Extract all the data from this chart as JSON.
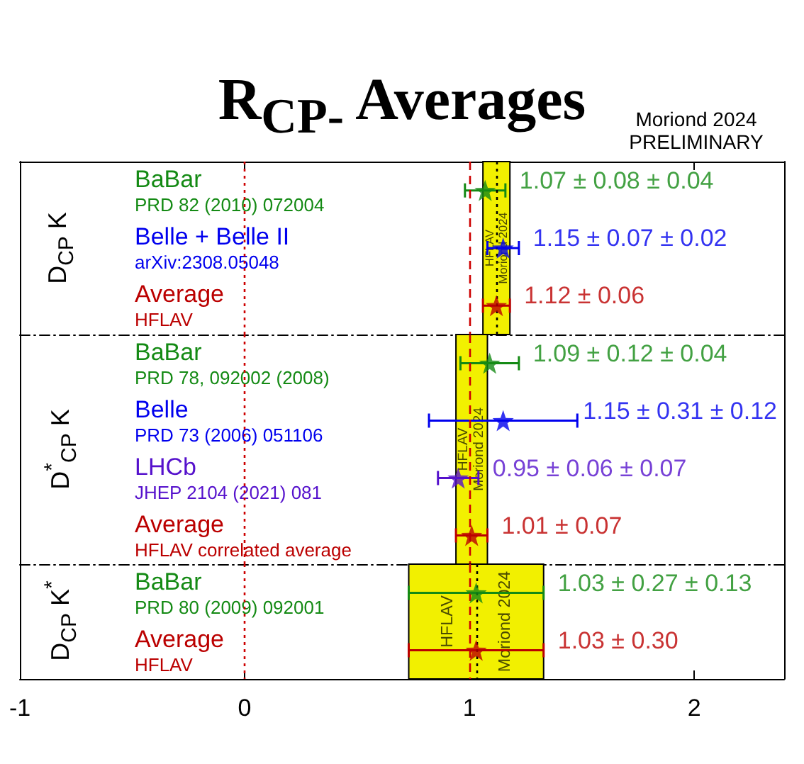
{
  "chart_data": [
    {
      "type": "scatter",
      "orientation": "horizontal",
      "title": "R$_{CP-}$ Averages",
      "annotations": [
        "Moriond 2024",
        "PRELIMINARY"
      ],
      "ylabel": "D$_{CP}$ K",
      "categories": [
        "BaBar\nPRD 82 (2010) 072004",
        "Belle + Belle II\narXiv:2308.05048",
        "Average\nHFLAV"
      ],
      "series": [
        {
          "values": [
            1.07,
            1.15,
            1.12
          ],
          "errors": [
            0.09,
            0.07,
            0.06
          ],
          "colors": [
            "#148a14",
            "#0000ee",
            "#bb0000"
          ],
          "value_labels": [
            "1.07 ± 0.08 ± 0.04",
            "1.15 ± 0.07 ± 0.02",
            "1.12 ± 0.06"
          ]
        }
      ],
      "xlim": [
        -1,
        2.4
      ],
      "xticks": [
        -1,
        0,
        1,
        2
      ],
      "tick_labels": "y",
      "marker": "star",
      "bands": [
        {
          "axis": "x",
          "from": 1.06,
          "to": 1.18,
          "label": "HFLAV\nMoriond 2024",
          "color": "#f2f000"
        }
      ],
      "ref_lines": [
        {
          "axis": "x",
          "value": 0,
          "color": "#cc0000",
          "line_style": "dotted"
        },
        {
          "axis": "x",
          "value": 1,
          "color": "#cc0000",
          "line_style": "dashed"
        },
        {
          "axis": "x",
          "value": 1.12,
          "color": "#000000",
          "line_style": "dotted"
        }
      ]
    },
    {
      "type": "scatter",
      "orientation": "horizontal",
      "ylabel": "D$^{*}$$_{CP}$ K",
      "categories": [
        "BaBar\nPRD 78, 092002 (2008)",
        "Belle\nPRD 73 (2006) 051106",
        "LHCb\nJHEP 2104 (2021) 081",
        "Average\nHFLAV correlated average"
      ],
      "series": [
        {
          "values": [
            1.09,
            1.15,
            0.95,
            1.01
          ],
          "errors": [
            0.13,
            0.33,
            0.09,
            0.07
          ],
          "colors": [
            "#148a14",
            "#0000ee",
            "#5511cc",
            "#bb0000"
          ],
          "value_labels": [
            "1.09 ± 0.12 ± 0.04",
            "1.15 ± 0.31 ± 0.12",
            "0.95 ± 0.06 ± 0.07",
            "1.01 ± 0.07"
          ]
        }
      ],
      "xlim": [
        -1,
        2.4
      ],
      "xticks": [
        -1,
        0,
        1,
        2
      ],
      "tick_labels": "y",
      "marker": "star",
      "bands": [
        {
          "axis": "x",
          "from": 0.94,
          "to": 1.08,
          "label": "HFLAV\nMoriond 2024",
          "color": "#f2f000"
        }
      ],
      "ref_lines": [
        {
          "axis": "x",
          "value": 0,
          "color": "#cc0000",
          "line_style": "dotted"
        },
        {
          "axis": "x",
          "value": 1,
          "color": "#cc0000",
          "line_style": "dashed"
        }
      ]
    },
    {
      "type": "scatter",
      "orientation": "horizontal",
      "ylabel": "D$_{CP}$ K$^{*}$",
      "categories": [
        "BaBar\nPRD 80 (2009) 092001",
        "Average\nHFLAV"
      ],
      "series": [
        {
          "values": [
            1.03,
            1.03
          ],
          "errors": [
            0.3,
            0.3
          ],
          "colors": [
            "#148a14",
            "#bb0000"
          ],
          "value_labels": [
            "1.03 ± 0.27 ± 0.13",
            "1.03 ± 0.30"
          ]
        }
      ],
      "xlim": [
        -1,
        2.4
      ],
      "xticks": [
        -1,
        0,
        1,
        2
      ],
      "marker": "star",
      "bands": [
        {
          "axis": "x",
          "from": 0.73,
          "to": 1.33,
          "label": "HFLAV\nMoriond 2024",
          "color": "#f2f000"
        }
      ],
      "ref_lines": [
        {
          "axis": "x",
          "value": 0,
          "color": "#cc0000",
          "line_style": "dotted"
        },
        {
          "axis": "x",
          "value": 1,
          "color": "#cc0000",
          "line_style": "dashed"
        },
        {
          "axis": "x",
          "value": 1.03,
          "color": "#000000",
          "line_style": "dotted"
        }
      ]
    }
  ]
}
